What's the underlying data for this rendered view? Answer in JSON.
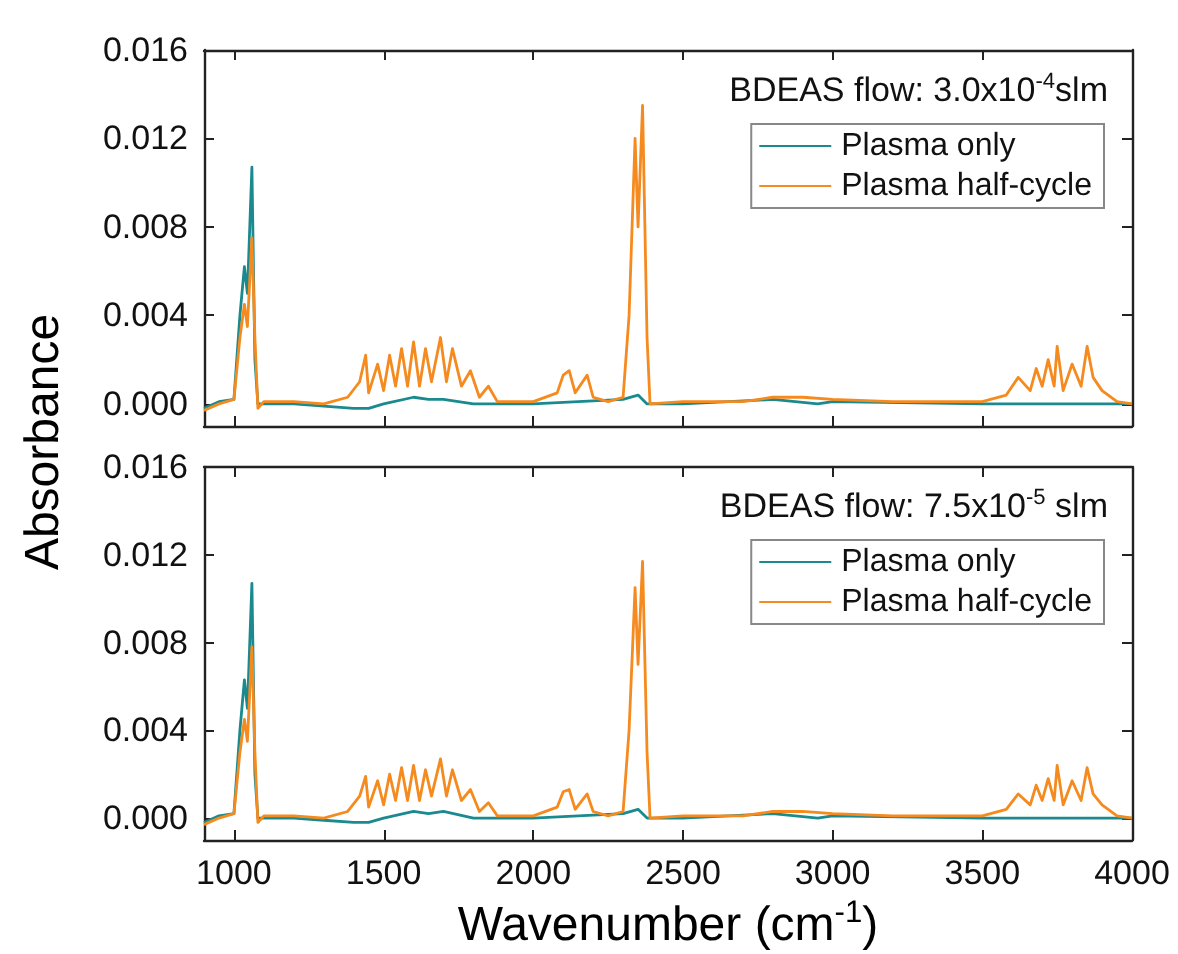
{
  "chart_data": [
    {
      "type": "line",
      "ylabel": "Absorbance",
      "annotations": [
        "BDEAS flow: 3.0x10$^{-4}$slm"
      ],
      "xlim": [
        900,
        4000
      ],
      "xticks": [
        1000,
        1500,
        2000,
        2500,
        3000,
        3500,
        4000
      ],
      "ylim": [
        -0.001,
        0.016
      ],
      "yticks": [
        {
          "value": 0,
          "label": "0.000"
        },
        0.004,
        0.008,
        0.012,
        0.016
      ],
      "tick_labels": "y",
      "legend": "top right",
      "grid": false,
      "marker": "none",
      "series": [
        {
          "name": "Plasma only",
          "color": "#1a8a8f",
          "x": [
            900,
            950,
            1000,
            1020,
            1035,
            1045,
            1060,
            1070,
            1080,
            1200,
            1300,
            1400,
            1450,
            1500,
            1600,
            1650,
            1700,
            1800,
            2000,
            2300,
            2350,
            2380,
            2500,
            2800,
            2950,
            3000,
            3500,
            4000
          ],
          "values": [
            -0.0002,
            0.0001,
            0.0002,
            0.004,
            0.0062,
            0.005,
            0.0107,
            0.002,
            0,
            0,
            -0.0001,
            -0.0002,
            -0.0002,
            0,
            0.0003,
            0.0002,
            0.0002,
            0,
            0,
            0.0002,
            0.0004,
            0,
            0,
            0.0002,
            0,
            0.0001,
            0,
            0
          ]
        },
        {
          "name": "Plasma half-cycle",
          "color": "#f58a1f",
          "x": [
            900,
            950,
            1000,
            1020,
            1035,
            1045,
            1060,
            1070,
            1080,
            1100,
            1200,
            1300,
            1380,
            1420,
            1440,
            1450,
            1480,
            1500,
            1520,
            1540,
            1560,
            1580,
            1600,
            1620,
            1640,
            1660,
            1690,
            1710,
            1730,
            1760,
            1790,
            1820,
            1850,
            1880,
            2000,
            2080,
            2100,
            2120,
            2140,
            2180,
            2200,
            2250,
            2300,
            2320,
            2340,
            2350,
            2365,
            2380,
            2390,
            2500,
            2700,
            2800,
            2900,
            3000,
            3200,
            3500,
            3580,
            3620,
            3660,
            3680,
            3700,
            3720,
            3740,
            3750,
            3770,
            3800,
            3830,
            3850,
            3870,
            3900,
            3950,
            4000
          ],
          "values": [
            -0.0003,
            0,
            0.0002,
            0.003,
            0.0045,
            0.0035,
            0.0075,
            0.003,
            -0.0002,
            0.0001,
            0.0001,
            0,
            0.0003,
            0.001,
            0.0022,
            0.0005,
            0.0018,
            0.0006,
            0.0022,
            0.0008,
            0.0025,
            0.0008,
            0.0028,
            0.0008,
            0.0025,
            0.001,
            0.003,
            0.001,
            0.0025,
            0.0008,
            0.0015,
            0.0003,
            0.0008,
            0.0001,
            0.0001,
            0.0005,
            0.0013,
            0.0015,
            0.0005,
            0.0013,
            0.0003,
            0.0001,
            0.0003,
            0.004,
            0.012,
            0.008,
            0.0135,
            0.003,
            0,
            0.0001,
            0.0001,
            0.0003,
            0.0003,
            0.0002,
            0.0001,
            0.0001,
            0.0004,
            0.0012,
            0.0006,
            0.0016,
            0.0008,
            0.002,
            0.0008,
            0.0026,
            0.0006,
            0.0018,
            0.0008,
            0.0026,
            0.0012,
            0.0006,
            0.0001,
            0
          ]
        }
      ]
    },
    {
      "type": "line",
      "xlabel": "Wavenumber (cm$^{-1}$)",
      "annotations": [
        "BDEAS flow: 7.5x10$^{-5}$ slm"
      ],
      "xlim": [
        900,
        4000
      ],
      "xticks": [
        1000,
        1500,
        2000,
        2500,
        3000,
        3500,
        4000
      ],
      "ylim": [
        -0.001,
        0.016
      ],
      "yticks": [
        {
          "value": 0,
          "label": "0.000"
        },
        0.004,
        0.008,
        0.012,
        0.016
      ],
      "legend": "top right",
      "grid": false,
      "marker": "none",
      "series": [
        {
          "name": "Plasma only",
          "color": "#1a8a8f",
          "x": [
            900,
            950,
            1000,
            1020,
            1035,
            1045,
            1060,
            1070,
            1080,
            1200,
            1300,
            1400,
            1450,
            1500,
            1600,
            1650,
            1700,
            1800,
            2000,
            2300,
            2350,
            2380,
            2500,
            2800,
            2950,
            3000,
            3500,
            4000
          ],
          "values": [
            -0.0002,
            0.0001,
            0.0002,
            0.004,
            0.0063,
            0.005,
            0.0107,
            0.002,
            0,
            0,
            -0.0001,
            -0.0002,
            -0.0002,
            0,
            0.0003,
            0.0002,
            0.0003,
            0,
            0,
            0.0002,
            0.0004,
            0,
            0,
            0.0002,
            0,
            0.0001,
            0,
            0
          ]
        },
        {
          "name": "Plasma half-cycle",
          "color": "#f58a1f",
          "x": [
            900,
            950,
            1000,
            1020,
            1035,
            1045,
            1060,
            1070,
            1080,
            1100,
            1200,
            1300,
            1380,
            1420,
            1440,
            1450,
            1480,
            1500,
            1520,
            1540,
            1560,
            1580,
            1600,
            1620,
            1640,
            1660,
            1690,
            1710,
            1730,
            1760,
            1790,
            1820,
            1850,
            1880,
            2000,
            2080,
            2100,
            2120,
            2140,
            2180,
            2200,
            2250,
            2300,
            2320,
            2340,
            2350,
            2365,
            2380,
            2390,
            2500,
            2700,
            2800,
            2900,
            3000,
            3200,
            3500,
            3580,
            3620,
            3660,
            3680,
            3700,
            3720,
            3740,
            3750,
            3770,
            3800,
            3830,
            3850,
            3870,
            3900,
            3950,
            4000
          ],
          "values": [
            -0.0003,
            0,
            0.0002,
            0.003,
            0.0045,
            0.0035,
            0.0078,
            0.003,
            -0.0002,
            0.0001,
            0.0001,
            0,
            0.0003,
            0.001,
            0.0019,
            0.0005,
            0.0017,
            0.0006,
            0.002,
            0.0008,
            0.0023,
            0.0008,
            0.0024,
            0.0008,
            0.0022,
            0.001,
            0.0027,
            0.001,
            0.0022,
            0.0008,
            0.0013,
            0.0003,
            0.0007,
            0.0001,
            0.0001,
            0.0005,
            0.0012,
            0.0013,
            0.0004,
            0.0011,
            0.0003,
            0.0001,
            0.0003,
            0.004,
            0.0105,
            0.007,
            0.0117,
            0.003,
            0,
            0.0001,
            0.0001,
            0.0003,
            0.0003,
            0.0002,
            0.0001,
            0.0001,
            0.0004,
            0.0011,
            0.0006,
            0.0015,
            0.0008,
            0.0018,
            0.0008,
            0.0024,
            0.0006,
            0.0017,
            0.0008,
            0.0023,
            0.0011,
            0.0006,
            0.0001,
            0
          ]
        }
      ]
    }
  ]
}
